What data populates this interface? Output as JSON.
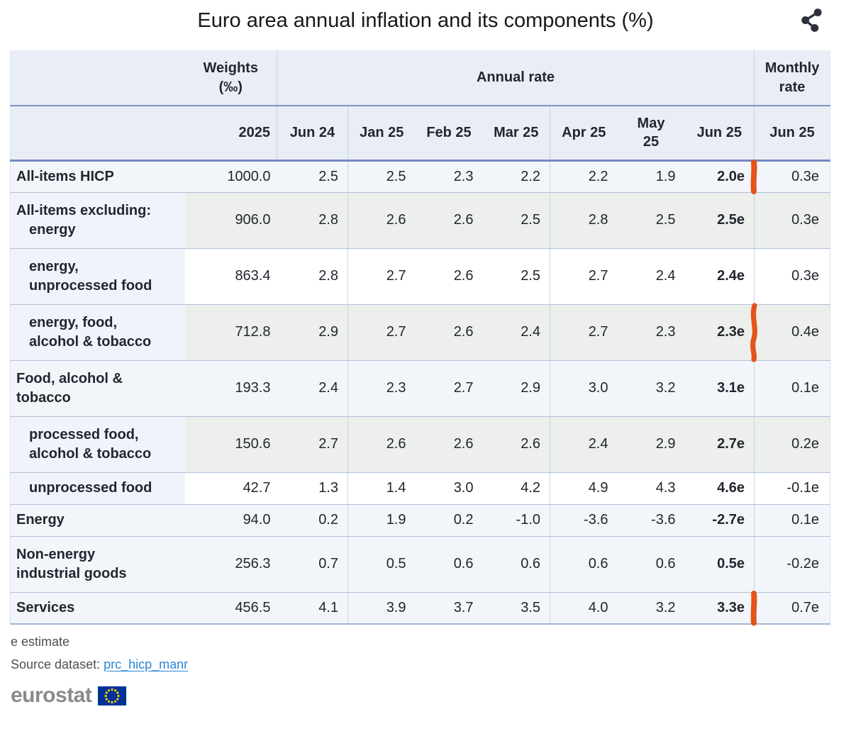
{
  "title": "Euro area annual inflation and its components (%)",
  "header": {
    "share_icon": "share"
  },
  "colors": {
    "annotation_orange": "#e5531a",
    "link_blue": "#2c86d4",
    "flag_blue": "#003399",
    "star_yellow": "#ffcc00",
    "logo_gray": "#8a8a8a",
    "header_bg": "#e9edf6",
    "blue_row": "#f2f5fa",
    "gray_row": "#edefec"
  },
  "table": {
    "weights_label_lines": [
      "Weights",
      "(‰)"
    ],
    "annual_label": "Annual rate",
    "monthly_label_lines": [
      "Monthly",
      "rate"
    ],
    "year_label": "2025",
    "month_labels": [
      "Jun 24",
      "Jan 25",
      "Feb 25",
      "Mar 25",
      "Apr 25",
      "May 25",
      "Jun 25"
    ],
    "monthly_month_label": "Jun 25",
    "rows": [
      {
        "label_lines": [
          {
            "text": "All-items HICP",
            "indented": false
          }
        ],
        "tone": "blue",
        "weight": "1000.0",
        "annual": [
          "2.5",
          "2.5",
          "2.3",
          "2.2",
          "2.2",
          "1.9"
        ],
        "annual_estimate": "2.0e",
        "monthly_estimate": "0.3e",
        "mark": "straight"
      },
      {
        "label_lines": [
          {
            "text": "All-items excluding:",
            "indented": false
          },
          {
            "text": "energy",
            "indented": true
          }
        ],
        "tone": "gray",
        "weight": "906.0",
        "annual": [
          "2.8",
          "2.6",
          "2.6",
          "2.5",
          "2.8",
          "2.5"
        ],
        "annual_estimate": "2.5e",
        "monthly_estimate": "0.3e",
        "mark": null
      },
      {
        "label_lines": [
          {
            "text": "energy,",
            "indented": true
          },
          {
            "text": "unprocessed food",
            "indented": true
          }
        ],
        "tone": "white",
        "weight": "863.4",
        "annual": [
          "2.8",
          "2.7",
          "2.6",
          "2.5",
          "2.7",
          "2.4"
        ],
        "annual_estimate": "2.4e",
        "monthly_estimate": "0.3e",
        "mark": null
      },
      {
        "label_lines": [
          {
            "text": "energy, food,",
            "indented": true
          },
          {
            "text": "alcohol & tobacco",
            "indented": true
          }
        ],
        "tone": "gray",
        "weight": "712.8",
        "annual": [
          "2.9",
          "2.7",
          "2.6",
          "2.4",
          "2.7",
          "2.3"
        ],
        "annual_estimate": "2.3e",
        "monthly_estimate": "0.4e",
        "mark": "wavy"
      },
      {
        "label_lines": [
          {
            "text": "Food, alcohol &",
            "indented": false
          },
          {
            "text": "tobacco",
            "indented": false
          }
        ],
        "tone": "blue",
        "weight": "193.3",
        "annual": [
          "2.4",
          "2.3",
          "2.7",
          "2.9",
          "3.0",
          "3.2"
        ],
        "annual_estimate": "3.1e",
        "monthly_estimate": "0.1e",
        "mark": null
      },
      {
        "label_lines": [
          {
            "text": "processed food,",
            "indented": true
          },
          {
            "text": "alcohol & tobacco",
            "indented": true
          }
        ],
        "tone": "gray",
        "weight": "150.6",
        "annual": [
          "2.7",
          "2.6",
          "2.6",
          "2.6",
          "2.4",
          "2.9"
        ],
        "annual_estimate": "2.7e",
        "monthly_estimate": "0.2e",
        "mark": null
      },
      {
        "label_lines": [
          {
            "text": "unprocessed food",
            "indented": true
          }
        ],
        "tone": "white",
        "weight": "42.7",
        "annual": [
          "1.3",
          "1.4",
          "3.0",
          "4.2",
          "4.9",
          "4.3"
        ],
        "annual_estimate": "4.6e",
        "monthly_estimate": "-0.1e",
        "mark": null
      },
      {
        "label_lines": [
          {
            "text": "Energy",
            "indented": false
          }
        ],
        "tone": "blue",
        "weight": "94.0",
        "annual": [
          "0.2",
          "1.9",
          "0.2",
          "-1.0",
          "-3.6",
          "-3.6"
        ],
        "annual_estimate": "-2.7e",
        "monthly_estimate": "0.1e",
        "mark": null
      },
      {
        "label_lines": [
          {
            "text": "Non-energy",
            "indented": false
          },
          {
            "text": "industrial goods",
            "indented": false
          }
        ],
        "tone": "blue",
        "weight": "256.3",
        "annual": [
          "0.7",
          "0.5",
          "0.6",
          "0.6",
          "0.6",
          "0.6"
        ],
        "annual_estimate": "0.5e",
        "monthly_estimate": "-0.2e",
        "mark": null
      },
      {
        "label_lines": [
          {
            "text": "Services",
            "indented": false
          }
        ],
        "tone": "blue",
        "weight": "456.5",
        "annual": [
          "4.1",
          "3.9",
          "3.7",
          "3.5",
          "4.0",
          "3.2"
        ],
        "annual_estimate": "3.3e",
        "monthly_estimate": "0.7e",
        "mark": "straight"
      }
    ]
  },
  "annotation": {
    "color": "#e5531a",
    "marked_rows": [
      "All-items HICP",
      "energy, food, alcohol & tobacco",
      "Services"
    ]
  },
  "footer": {
    "estimate_note": "e estimate",
    "source_label": "Source dataset:",
    "source_link": "prc_hicp_manr",
    "logo_text": "eurostat"
  },
  "chart_data": {
    "type": "table",
    "title": "Euro area annual inflation and its components (%)",
    "columns": [
      "Weights (‰) 2025",
      "Annual rate Jun 24",
      "Annual rate Jan 25",
      "Annual rate Feb 25",
      "Annual rate Mar 25",
      "Annual rate Apr 25",
      "Annual rate May 25",
      "Annual rate Jun 25",
      "Monthly rate Jun 25"
    ],
    "categories": [
      "All-items HICP",
      "All-items excluding: energy",
      "All-items excluding: energy, unprocessed food",
      "All-items excluding: energy, food, alcohol & tobacco",
      "Food, alcohol & tobacco",
      "processed food, alcohol & tobacco",
      "unprocessed food",
      "Energy",
      "Non-energy industrial goods",
      "Services"
    ],
    "values": [
      [
        1000.0,
        2.5,
        2.5,
        2.3,
        2.2,
        2.2,
        1.9,
        "2.0e",
        "0.3e"
      ],
      [
        906.0,
        2.8,
        2.6,
        2.6,
        2.5,
        2.8,
        2.5,
        "2.5e",
        "0.3e"
      ],
      [
        863.4,
        2.8,
        2.7,
        2.6,
        2.5,
        2.7,
        2.4,
        "2.4e",
        "0.3e"
      ],
      [
        712.8,
        2.9,
        2.7,
        2.6,
        2.4,
        2.7,
        2.3,
        "2.3e",
        "0.4e"
      ],
      [
        193.3,
        2.4,
        2.3,
        2.7,
        2.9,
        3.0,
        3.2,
        "3.1e",
        "0.1e"
      ],
      [
        150.6,
        2.7,
        2.6,
        2.6,
        2.6,
        2.4,
        2.9,
        "2.7e",
        "0.2e"
      ],
      [
        42.7,
        1.3,
        1.4,
        3.0,
        4.2,
        4.9,
        4.3,
        "4.6e",
        "-0.1e"
      ],
      [
        94.0,
        0.2,
        1.9,
        0.2,
        -1.0,
        -3.6,
        -3.6,
        "-2.7e",
        "0.1e"
      ],
      [
        256.3,
        0.7,
        0.5,
        0.6,
        0.6,
        0.6,
        0.6,
        "0.5e",
        "-0.2e"
      ],
      [
        456.5,
        4.1,
        3.9,
        3.7,
        3.5,
        4.0,
        3.2,
        "3.3e",
        "0.7e"
      ]
    ],
    "footnote": "e estimate",
    "source": "prc_hicp_manr"
  }
}
